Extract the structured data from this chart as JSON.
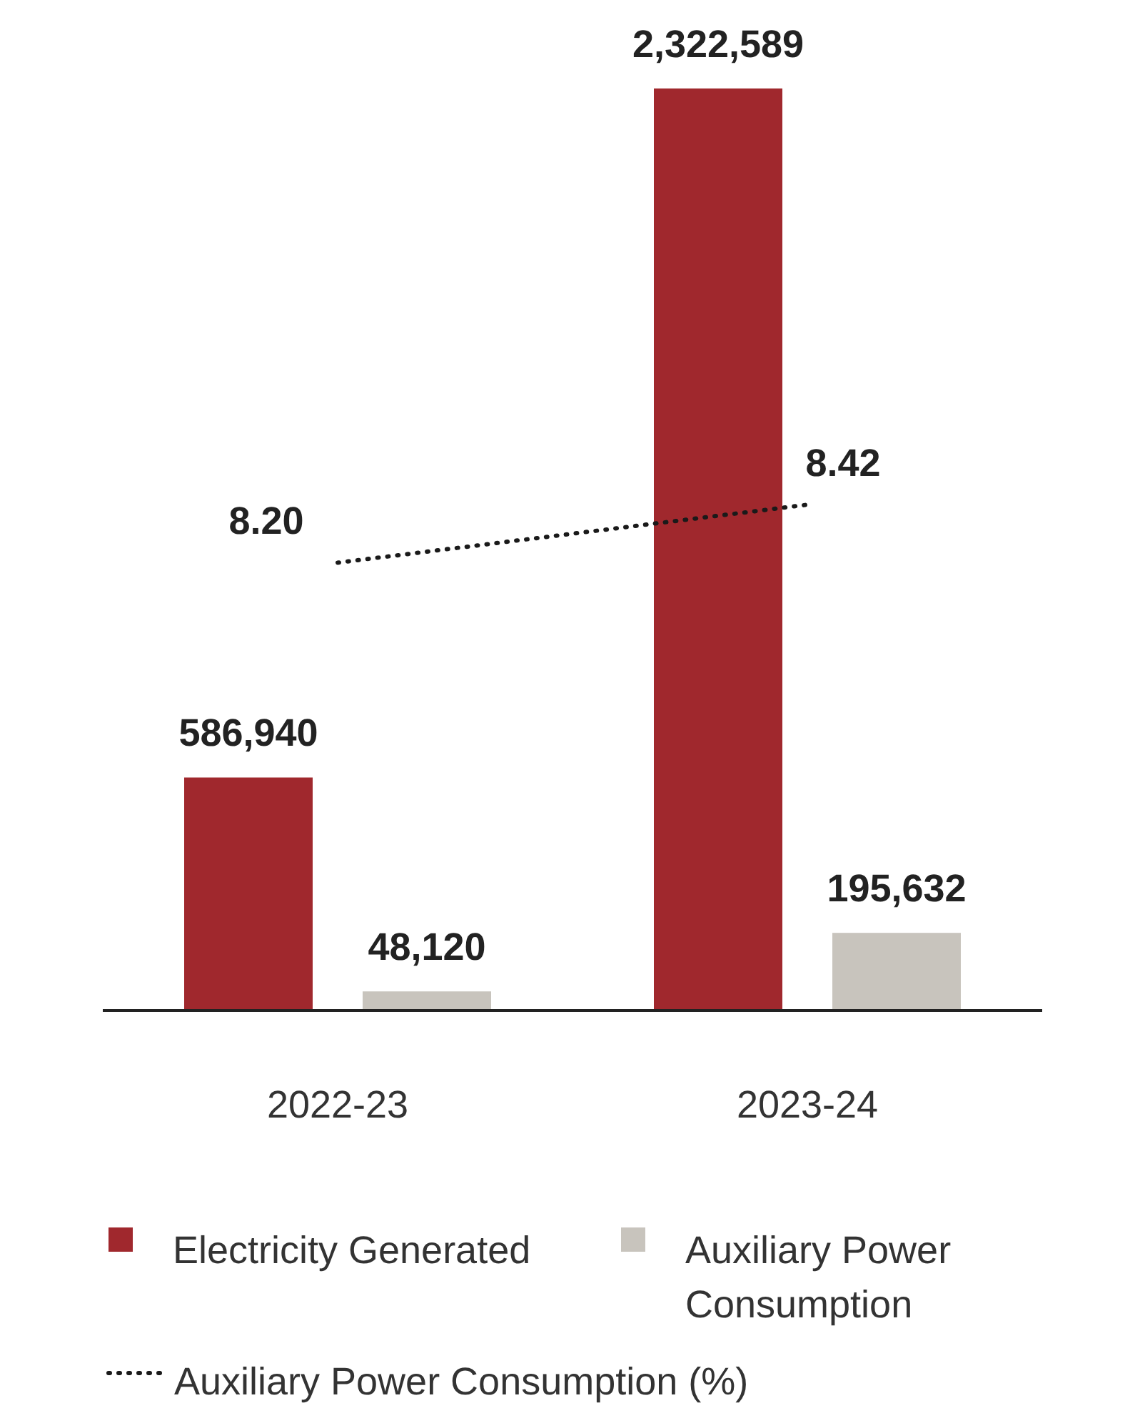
{
  "chart_data": {
    "type": "bar",
    "categories": [
      "2022-23",
      "2023-24"
    ],
    "series": [
      {
        "name": "Electricity Generated",
        "color": "#a0282d",
        "values": [
          586940,
          2322589
        ],
        "value_labels": [
          "586,940",
          "2,322,589"
        ]
      },
      {
        "name": "Auxiliary Power Consumption",
        "color": "#c8c4bd",
        "values": [
          48120,
          195632
        ],
        "value_labels": [
          "48,120",
          "195,632"
        ]
      },
      {
        "name": "Auxiliary Power Consumption (%)",
        "type": "line",
        "axis": "y2",
        "color": "#1a1a1a",
        "line_style": "dotted",
        "marker": "none",
        "values": [
          8.2,
          8.42
        ],
        "value_labels": [
          "8.20",
          "8.42"
        ]
      }
    ],
    "y2lim": [
      6.5,
      10
    ],
    "tick_labels": "x",
    "legend": "bottom",
    "grid": false
  }
}
